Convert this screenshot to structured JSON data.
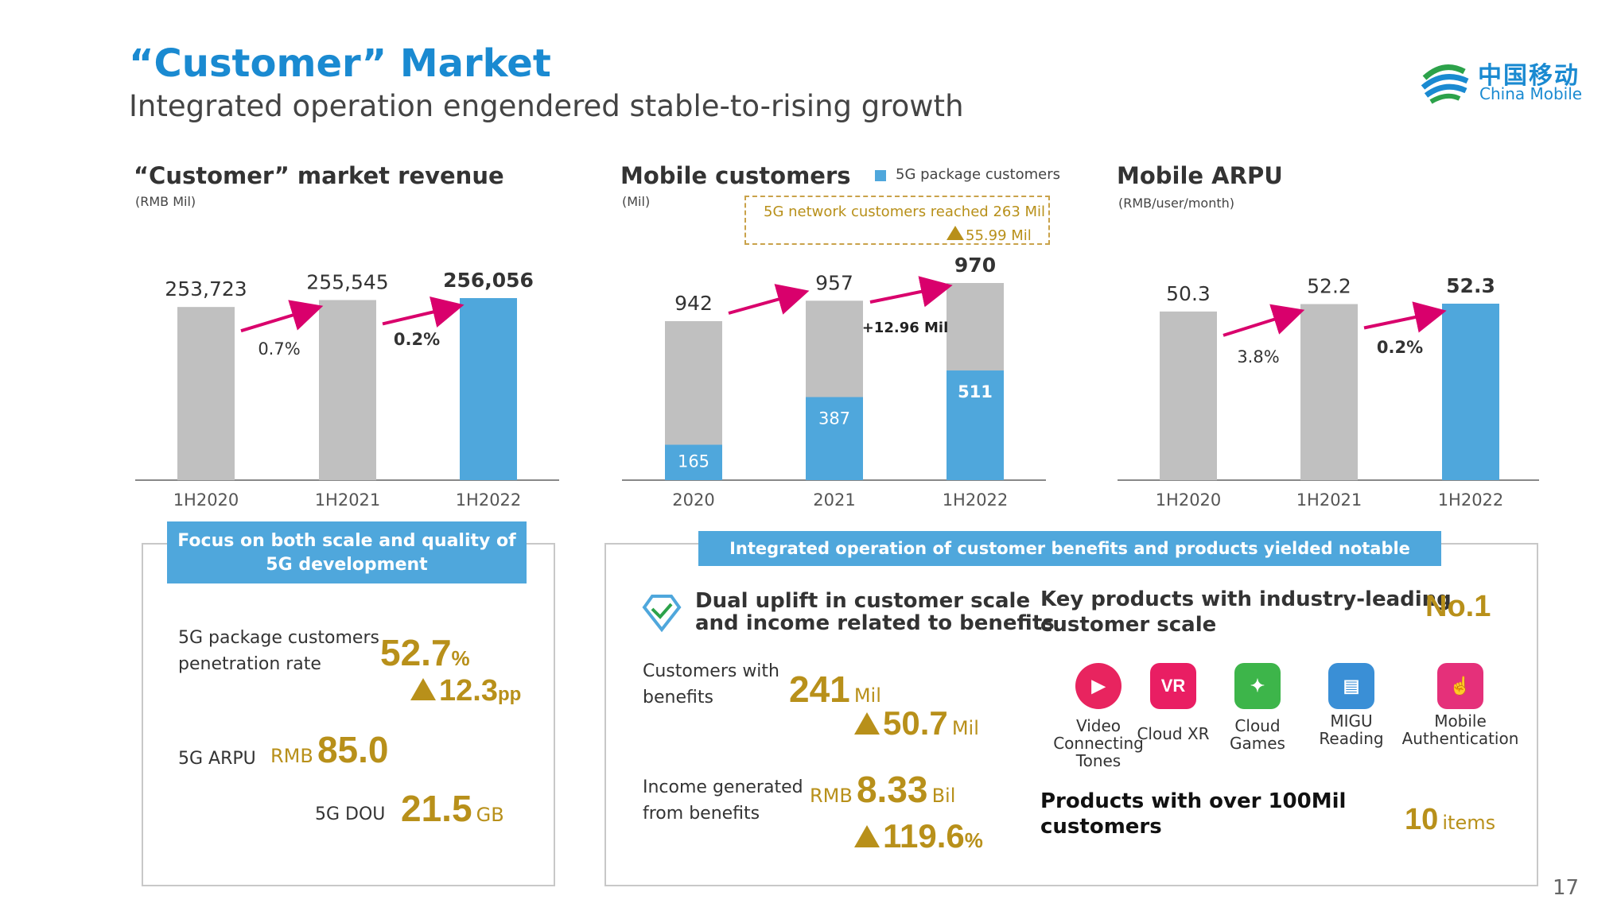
{
  "header": {
    "title": "“Customer” Market",
    "subtitle": "Integrated operation engendered stable-to-rising growth",
    "logo_cn": "中国移动",
    "logo_en": "China Mobile"
  },
  "colors": {
    "accent": "#1a8ad1",
    "gray_bar": "#c0c0c0",
    "blue_bar": "#4fa7dc",
    "arrow": "#d9006c",
    "gold": "#b8901a"
  },
  "charts": {
    "revenue": {
      "title": "“Customer” market revenue",
      "unit": "(RMB Mil)",
      "growth": [
        "0.7%",
        "0.2%"
      ]
    },
    "mobile": {
      "title": "Mobile customers",
      "unit": "(Mil)",
      "legend": "5G package customers",
      "callout_line1": "5G network customers reached 263 Mil",
      "callout_line2": "55.99 Mil",
      "delta": "+12.96 Mil"
    },
    "arpu": {
      "title": "Mobile ARPU",
      "unit": "(RMB/user/month)",
      "growth": [
        "3.8%",
        "0.2%"
      ]
    }
  },
  "chart_data": [
    {
      "type": "bar",
      "title": "“Customer” market revenue",
      "ylabel": "(RMB Mil)",
      "categories": [
        "1H2020",
        "1H2021",
        "1H2022"
      ],
      "values": [
        253723,
        255545,
        256056
      ],
      "labels": [
        "253,723",
        "255,545",
        "256,056"
      ],
      "growth_labels": [
        "0.7%",
        "0.2%"
      ]
    },
    {
      "type": "bar",
      "title": "Mobile customers",
      "ylabel": "(Mil)",
      "categories": [
        "2020",
        "2021",
        "1H2022"
      ],
      "series": [
        {
          "name": "5G package customers",
          "values": [
            165,
            387,
            511
          ]
        }
      ],
      "totals": [
        942,
        957,
        970
      ]
    },
    {
      "type": "bar",
      "title": "Mobile ARPU",
      "ylabel": "(RMB/user/month)",
      "categories": [
        "1H2020",
        "1H2021",
        "1H2022"
      ],
      "values": [
        50.3,
        52.2,
        52.3
      ],
      "labels": [
        "50.3",
        "52.2",
        "52.3"
      ],
      "growth_labels": [
        "3.8%",
        "0.2%"
      ]
    }
  ],
  "panel_5g": {
    "banner_line1": "Focus on both scale and quality of",
    "banner_line2": "5G development",
    "penetration_label_1": "5G package customers",
    "penetration_label_2": "penetration rate",
    "penetration_value": "52.7",
    "penetration_unit": "%",
    "penetration_delta": "12.3",
    "penetration_delta_unit": "pp",
    "arpu_label": "5G ARPU",
    "arpu_prefix": "RMB",
    "arpu_value": "85.0",
    "dou_label": "5G DOU",
    "dou_value": "21.5",
    "dou_unit": "GB"
  },
  "panel_benefits": {
    "banner": "Integrated operation of customer benefits and products yielded notable results",
    "dual_line1": "Dual uplift in customer scale",
    "dual_line2": "and income related to benefits",
    "cust_label_1": "Customers with",
    "cust_label_2": "benefits",
    "cust_value": "241",
    "cust_unit": "Mil",
    "cust_delta": "50.7",
    "cust_delta_unit": "Mil",
    "income_label_1": "Income generated",
    "income_label_2": "from benefits",
    "income_prefix": "RMB",
    "income_value": "8.33",
    "income_unit": "Bil",
    "income_delta": "119.6",
    "income_delta_unit": "%",
    "key_line1": "Key products with industry-leading",
    "key_line2": "customer scale",
    "no1": "No.1",
    "products": [
      {
        "icon": "video-ringtone-icon",
        "line1": "Video",
        "line2": "Connecting",
        "line3": "Tones",
        "color": "#e8245f"
      },
      {
        "icon": "cloud-xr-icon",
        "line1": "Cloud XR",
        "line2": "",
        "line3": "",
        "color": "#e91e63"
      },
      {
        "icon": "cloud-games-icon",
        "line1": "Cloud",
        "line2": "Games",
        "line3": "",
        "color": "#3db54a"
      },
      {
        "icon": "migu-reading-icon",
        "line1": "MIGU",
        "line2": "Reading",
        "line3": "",
        "color": "#3a8fd6"
      },
      {
        "icon": "mobile-auth-icon",
        "line1": "Mobile",
        "line2": "Authentication",
        "line3": "",
        "color": "#e5307a"
      }
    ],
    "over_line1": "Products with over 100Mil",
    "over_line2": "customers",
    "items_value": "10",
    "items_unit": "items"
  },
  "page_number": "17"
}
